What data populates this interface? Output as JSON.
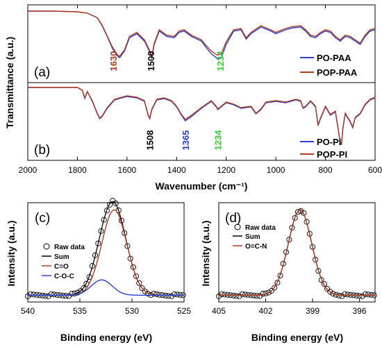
{
  "colors": {
    "blue": "#2a3fd6",
    "red": "#b5391c",
    "black": "#000000",
    "green": "#33cc33",
    "brown": "#b5391c"
  },
  "chart_data": [
    {
      "type": "line",
      "panel": "(a)",
      "ylabel": "Transmittance (a.u.)",
      "xlabel": "Wavenumber (cm⁻¹)",
      "xlim": [
        2000,
        600
      ],
      "xticks": [
        "2000",
        "1800",
        "1600",
        "1400",
        "1200",
        "1000",
        "800",
        "600"
      ],
      "series": [
        {
          "name": "PO-PAA",
          "color": "#2a3fd6",
          "x": [
            2000,
            1900,
            1800,
            1760,
            1720,
            1700,
            1680,
            1660,
            1640,
            1630,
            1610,
            1590,
            1560,
            1530,
            1510,
            1500,
            1490,
            1470,
            1440,
            1410,
            1390,
            1370,
            1340,
            1300,
            1280,
            1260,
            1240,
            1234,
            1220,
            1200,
            1170,
            1140,
            1120,
            1100,
            1060,
            1020,
            1000,
            960,
            930,
            900,
            880,
            860,
            840,
            820,
            800,
            780,
            760,
            740,
            720,
            700,
            680,
            660,
            640,
            620,
            600
          ],
          "y": [
            1,
            1,
            0.99,
            0.97,
            0.9,
            0.78,
            0.62,
            0.45,
            0.33,
            0.3,
            0.4,
            0.6,
            0.66,
            0.55,
            0.4,
            0.3,
            0.5,
            0.7,
            0.62,
            0.6,
            0.68,
            0.7,
            0.62,
            0.55,
            0.45,
            0.36,
            0.3,
            0.28,
            0.3,
            0.5,
            0.7,
            0.72,
            0.58,
            0.66,
            0.76,
            0.7,
            0.66,
            0.72,
            0.75,
            0.76,
            0.7,
            0.62,
            0.6,
            0.66,
            0.7,
            0.68,
            0.6,
            0.55,
            0.62,
            0.6,
            0.55,
            0.5,
            0.62,
            0.7,
            0.72
          ]
        },
        {
          "name": "POP-PAA",
          "color": "#b5391c",
          "x": [
            2000,
            1900,
            1800,
            1760,
            1720,
            1700,
            1680,
            1660,
            1640,
            1630,
            1610,
            1590,
            1560,
            1530,
            1510,
            1500,
            1490,
            1470,
            1440,
            1410,
            1390,
            1370,
            1340,
            1300,
            1280,
            1260,
            1240,
            1234,
            1220,
            1200,
            1170,
            1140,
            1120,
            1100,
            1060,
            1020,
            1000,
            960,
            930,
            900,
            880,
            860,
            840,
            820,
            800,
            780,
            760,
            740,
            720,
            700,
            680,
            660,
            640,
            620,
            600
          ],
          "y": [
            1,
            1,
            0.99,
            0.97,
            0.9,
            0.79,
            0.63,
            0.47,
            0.35,
            0.32,
            0.42,
            0.62,
            0.68,
            0.57,
            0.42,
            0.32,
            0.52,
            0.72,
            0.64,
            0.62,
            0.7,
            0.72,
            0.64,
            0.57,
            0.48,
            0.4,
            0.35,
            0.34,
            0.36,
            0.54,
            0.72,
            0.74,
            0.6,
            0.68,
            0.78,
            0.72,
            0.68,
            0.74,
            0.77,
            0.78,
            0.72,
            0.64,
            0.62,
            0.68,
            0.72,
            0.7,
            0.62,
            0.57,
            0.64,
            0.62,
            0.57,
            0.52,
            0.64,
            0.72,
            0.74
          ]
        }
      ],
      "annotations": [
        {
          "text": "1630",
          "x": 1655,
          "color": "#b5391c"
        },
        {
          "text": "1500",
          "x": 1505,
          "color": "#000000"
        },
        {
          "text": "1234",
          "x": 1225,
          "color": "#33cc33"
        }
      ]
    },
    {
      "type": "line",
      "panel": "(b)",
      "xlim": [
        2000,
        600
      ],
      "series": [
        {
          "name": "PO-PI",
          "color": "#2a3fd6",
          "x": [
            2000,
            1900,
            1800,
            1780,
            1770,
            1760,
            1740,
            1720,
            1710,
            1700,
            1680,
            1650,
            1600,
            1560,
            1530,
            1515,
            1508,
            1500,
            1480,
            1450,
            1420,
            1400,
            1380,
            1365,
            1340,
            1300,
            1280,
            1260,
            1240,
            1234,
            1220,
            1200,
            1170,
            1140,
            1100,
            1080,
            1060,
            1040,
            1000,
            960,
            920,
            900,
            890,
            880,
            860,
            840,
            830,
            820,
            800,
            780,
            760,
            740,
            735,
            730,
            720,
            700,
            690,
            680,
            660,
            640,
            620,
            600
          ],
          "y": [
            1,
            1,
            1,
            0.96,
            0.84,
            0.94,
            0.8,
            0.62,
            0.55,
            0.58,
            0.7,
            0.82,
            0.87,
            0.85,
            0.8,
            0.6,
            0.55,
            0.68,
            0.82,
            0.84,
            0.8,
            0.72,
            0.6,
            0.52,
            0.58,
            0.7,
            0.75,
            0.8,
            0.72,
            0.68,
            0.72,
            0.78,
            0.75,
            0.7,
            0.72,
            0.62,
            0.68,
            0.78,
            0.8,
            0.78,
            0.82,
            0.8,
            0.7,
            0.72,
            0.8,
            0.72,
            0.45,
            0.55,
            0.72,
            0.6,
            0.65,
            0.2,
            0.18,
            0.4,
            0.62,
            0.5,
            0.42,
            0.56,
            0.62,
            0.75,
            0.82,
            0.85
          ]
        },
        {
          "name": "POP-PI",
          "color": "#b5391c",
          "x": [
            2000,
            1900,
            1800,
            1780,
            1770,
            1760,
            1740,
            1720,
            1710,
            1700,
            1680,
            1650,
            1600,
            1560,
            1530,
            1515,
            1508,
            1500,
            1480,
            1450,
            1420,
            1400,
            1380,
            1365,
            1340,
            1300,
            1280,
            1260,
            1240,
            1234,
            1220,
            1200,
            1170,
            1140,
            1100,
            1080,
            1060,
            1040,
            1000,
            960,
            920,
            900,
            890,
            880,
            860,
            840,
            830,
            820,
            800,
            780,
            760,
            740,
            735,
            730,
            720,
            700,
            690,
            680,
            660,
            640,
            620,
            600
          ],
          "y": [
            1,
            1,
            1,
            0.96,
            0.85,
            0.94,
            0.81,
            0.63,
            0.56,
            0.59,
            0.71,
            0.83,
            0.88,
            0.86,
            0.81,
            0.61,
            0.56,
            0.69,
            0.83,
            0.85,
            0.81,
            0.73,
            0.61,
            0.54,
            0.6,
            0.71,
            0.76,
            0.81,
            0.73,
            0.69,
            0.73,
            0.79,
            0.76,
            0.71,
            0.73,
            0.63,
            0.69,
            0.79,
            0.81,
            0.79,
            0.83,
            0.81,
            0.71,
            0.73,
            0.81,
            0.73,
            0.46,
            0.56,
            0.73,
            0.61,
            0.66,
            0.21,
            0.19,
            0.41,
            0.63,
            0.51,
            0.43,
            0.57,
            0.63,
            0.76,
            0.83,
            0.86
          ]
        }
      ],
      "annotations": [
        {
          "text": "1508",
          "x": 1508,
          "color": "#000000"
        },
        {
          "text": "1365",
          "x": 1365,
          "color": "#2a3fd6"
        },
        {
          "text": "1234",
          "x": 1234,
          "color": "#33cc33"
        }
      ]
    },
    {
      "type": "line",
      "panel": "(c)",
      "xlabel": "Binding energy (eV)",
      "ylabel": "Intensity (a.u.)",
      "xlim": [
        540,
        525
      ],
      "xticks": [
        "540",
        "535",
        "530",
        "525"
      ],
      "series": [
        {
          "name": "Raw data",
          "style": "circles",
          "color": "#000000"
        },
        {
          "name": "Sum",
          "color": "#000000"
        },
        {
          "name": "C=O",
          "color": "#b5391c"
        },
        {
          "name": "C-O-C",
          "color": "#2a3fd6"
        }
      ],
      "peaks": [
        {
          "series": "C=O",
          "center": 531.7,
          "width": 1.2,
          "height": 1.0
        },
        {
          "series": "C-O-C",
          "center": 532.9,
          "width": 1.0,
          "height": 0.18
        }
      ],
      "baseline": 0.03
    },
    {
      "type": "line",
      "panel": "(d)",
      "xlabel": "Binding energy (eV)",
      "ylabel": "Intensity (a.u.)",
      "xlim": [
        405,
        395
      ],
      "xticks": [
        "405",
        "402",
        "399",
        "396"
      ],
      "series": [
        {
          "name": "Raw data",
          "style": "circles",
          "color": "#000000"
        },
        {
          "name": "Sum",
          "color": "#000000"
        },
        {
          "name": "O=C-N",
          "color": "#b5391c"
        }
      ],
      "peaks": [
        {
          "series": "O=C-N",
          "center": 399.8,
          "width": 0.75,
          "height": 1.0
        }
      ],
      "baseline": 0.03
    }
  ]
}
